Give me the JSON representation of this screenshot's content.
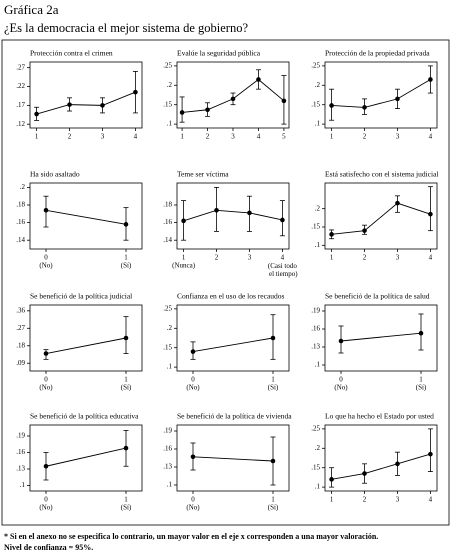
{
  "header": {
    "title": "Gráfica 2a",
    "subtitle": "¿Es la democracia el mejor sistema de gobierno?"
  },
  "chart_data": [
    {
      "type": "line",
      "title": "Protección contra el crimen",
      "x": [
        1,
        2,
        3,
        4
      ],
      "xlim": [
        0.8,
        4.2
      ],
      "xticks": [
        1,
        2,
        3,
        4
      ],
      "series": [
        {
          "color": "#000000",
          "values": [
            0.147,
            0.172,
            0.17,
            0.205
          ],
          "lower": [
            0.13,
            0.155,
            0.15,
            0.15
          ],
          "upper": [
            0.165,
            0.19,
            0.19,
            0.26
          ]
        }
      ],
      "ylim": [
        0.11,
        0.285
      ],
      "yticks": [
        {
          "value": 0.12,
          "label": ".12"
        },
        {
          "value": 0.17,
          "label": ".17"
        },
        {
          "value": 0.22,
          "label": ".22"
        },
        {
          "value": 0.27,
          "label": ".27"
        }
      ]
    },
    {
      "type": "line",
      "title": "Evalúe la seguridad pública",
      "x": [
        1,
        2,
        3,
        4,
        5
      ],
      "xlim": [
        0.8,
        5.2
      ],
      "xticks": [
        1,
        2,
        3,
        4,
        5
      ],
      "series": [
        {
          "color": "#000000",
          "values": [
            0.13,
            0.137,
            0.165,
            0.215,
            0.16
          ],
          "lower": [
            0.105,
            0.12,
            0.15,
            0.19,
            0.1
          ],
          "upper": [
            0.17,
            0.155,
            0.18,
            0.24,
            0.225
          ]
        }
      ],
      "ylim": [
        0.09,
        0.26
      ],
      "yticks": [
        {
          "value": 0.1,
          "label": ".1"
        },
        {
          "value": 0.15,
          "label": ".15"
        },
        {
          "value": 0.2,
          "label": ".2"
        },
        {
          "value": 0.25,
          "label": ".25"
        }
      ]
    },
    {
      "type": "line",
      "title": "Protección de la propiedad privada",
      "x": [
        1,
        2,
        3,
        4
      ],
      "xlim": [
        0.8,
        4.2
      ],
      "xticks": [
        1,
        2,
        3,
        4
      ],
      "series": [
        {
          "color": "#000000",
          "values": [
            0.148,
            0.143,
            0.165,
            0.215
          ],
          "lower": [
            0.11,
            0.125,
            0.14,
            0.18
          ],
          "upper": [
            0.19,
            0.165,
            0.19,
            0.25
          ]
        }
      ],
      "ylim": [
        0.09,
        0.26
      ],
      "yticks": [
        {
          "value": 0.1,
          "label": ".1"
        },
        {
          "value": 0.15,
          "label": ".15"
        },
        {
          "value": 0.2,
          "label": ".2"
        },
        {
          "value": 0.25,
          "label": ".25"
        }
      ]
    },
    {
      "type": "line",
      "title": "Ha sido asaltado",
      "x": [
        0,
        1
      ],
      "xlim": [
        -0.2,
        1.2
      ],
      "xticks": [
        0,
        1
      ],
      "xtick_notes": [
        "(No)",
        "(Sí)"
      ],
      "series": [
        {
          "color": "#000000",
          "values": [
            0.174,
            0.158
          ],
          "lower": [
            0.155,
            0.14
          ],
          "upper": [
            0.19,
            0.177
          ]
        }
      ],
      "ylim": [
        0.13,
        0.205
      ],
      "yticks": [
        {
          "value": 0.14,
          "label": ".14"
        },
        {
          "value": 0.16,
          "label": ".16"
        },
        {
          "value": 0.18,
          "label": ".18"
        },
        {
          "value": 0.2,
          "label": ".2"
        }
      ]
    },
    {
      "type": "line",
      "title": "Teme ser víctima",
      "x": [
        1,
        2,
        3,
        4
      ],
      "xlim": [
        0.8,
        4.2
      ],
      "xticks": [
        1,
        2,
        3,
        4
      ],
      "xtick_notes": [
        "(Nunca)",
        null,
        null,
        "(Casi todo el tiempo)"
      ],
      "series": [
        {
          "color": "#000000",
          "values": [
            0.162,
            0.174,
            0.171,
            0.163
          ],
          "lower": [
            0.14,
            0.15,
            0.15,
            0.145
          ],
          "upper": [
            0.185,
            0.2,
            0.19,
            0.185
          ]
        }
      ],
      "ylim": [
        0.13,
        0.205
      ],
      "yticks": [
        {
          "value": 0.14,
          "label": ".14"
        },
        {
          "value": 0.16,
          "label": ".16"
        },
        {
          "value": 0.18,
          "label": ".18"
        }
      ]
    },
    {
      "type": "line",
      "title": "Está satisfecho con el sistema judicial",
      "x": [
        1,
        2,
        3,
        4
      ],
      "xlim": [
        0.8,
        4.2
      ],
      "xticks": [
        1,
        2,
        3,
        4
      ],
      "series": [
        {
          "color": "#000000",
          "values": [
            0.13,
            0.14,
            0.215,
            0.185
          ],
          "lower": [
            0.118,
            0.13,
            0.19,
            0.14
          ],
          "upper": [
            0.142,
            0.155,
            0.235,
            0.26
          ]
        }
      ],
      "ylim": [
        0.09,
        0.27
      ],
      "yticks": [
        {
          "value": 0.1,
          "label": ".1"
        },
        {
          "value": 0.15,
          "label": ".15"
        },
        {
          "value": 0.2,
          "label": ".2"
        }
      ]
    },
    {
      "type": "line",
      "title": "Se benefició de la política judicial",
      "x": [
        0,
        1
      ],
      "xlim": [
        -0.2,
        1.2
      ],
      "xticks": [
        0,
        1
      ],
      "xtick_notes": [
        "(No)",
        "(Sí)"
      ],
      "series": [
        {
          "color": "#000000",
          "values": [
            0.14,
            0.22
          ],
          "lower": [
            0.11,
            0.14
          ],
          "upper": [
            0.16,
            0.33
          ]
        }
      ],
      "ylim": [
        0.05,
        0.39
      ],
      "yticks": [
        {
          "value": 0.09,
          "label": ".09"
        },
        {
          "value": 0.18,
          "label": ".18"
        },
        {
          "value": 0.27,
          "label": ".27"
        },
        {
          "value": 0.36,
          "label": ".36"
        }
      ]
    },
    {
      "type": "line",
      "title": "Confianza en el uso de los recaudos",
      "x": [
        0,
        1
      ],
      "xlim": [
        -0.2,
        1.2
      ],
      "xticks": [
        0,
        1
      ],
      "xtick_notes": [
        "(No)",
        "(Sí)"
      ],
      "series": [
        {
          "color": "#000000",
          "values": [
            0.14,
            0.175
          ],
          "lower": [
            0.12,
            0.12
          ],
          "upper": [
            0.165,
            0.235
          ]
        }
      ],
      "ylim": [
        0.09,
        0.26
      ],
      "yticks": [
        {
          "value": 0.1,
          "label": ".1"
        },
        {
          "value": 0.15,
          "label": ".15"
        },
        {
          "value": 0.2,
          "label": ".2"
        },
        {
          "value": 0.25,
          "label": ".25"
        }
      ]
    },
    {
      "type": "line",
      "title": "Se benefició de la política de salud",
      "x": [
        0,
        1
      ],
      "xlim": [
        -0.2,
        1.2
      ],
      "xticks": [
        0,
        1
      ],
      "xtick_notes": [
        "(No)",
        "(Sí)"
      ],
      "series": [
        {
          "color": "#000000",
          "values": [
            0.14,
            0.153
          ],
          "lower": [
            0.12,
            0.125
          ],
          "upper": [
            0.165,
            0.185
          ]
        }
      ],
      "ylim": [
        0.09,
        0.2
      ],
      "yticks": [
        {
          "value": 0.1,
          "label": ".1"
        },
        {
          "value": 0.13,
          "label": ".13"
        },
        {
          "value": 0.16,
          "label": ".16"
        },
        {
          "value": 0.19,
          "label": ".19"
        }
      ]
    },
    {
      "type": "line",
      "title": "Se benefició de la política educativa",
      "x": [
        0,
        1
      ],
      "xlim": [
        -0.2,
        1.2
      ],
      "xticks": [
        0,
        1
      ],
      "xtick_notes": [
        "(No)",
        "(Sí)"
      ],
      "series": [
        {
          "color": "#000000",
          "values": [
            0.135,
            0.168
          ],
          "lower": [
            0.11,
            0.135
          ],
          "upper": [
            0.16,
            0.2
          ]
        }
      ],
      "ylim": [
        0.09,
        0.21
      ],
      "yticks": [
        {
          "value": 0.1,
          "label": ".1"
        },
        {
          "value": 0.13,
          "label": ".13"
        },
        {
          "value": 0.16,
          "label": ".16"
        },
        {
          "value": 0.19,
          "label": ".19"
        }
      ]
    },
    {
      "type": "line",
      "title": "Se benefició de la política de vivienda",
      "x": [
        0,
        1
      ],
      "xlim": [
        -0.2,
        1.2
      ],
      "xticks": [
        0,
        1
      ],
      "xtick_notes": [
        "(No)",
        "(Sí)"
      ],
      "series": [
        {
          "color": "#000000",
          "values": [
            0.147,
            0.14
          ],
          "lower": [
            0.125,
            0.1
          ],
          "upper": [
            0.17,
            0.18
          ]
        }
      ],
      "ylim": [
        0.09,
        0.2
      ],
      "yticks": [
        {
          "value": 0.1,
          "label": ".1"
        },
        {
          "value": 0.13,
          "label": ".13"
        },
        {
          "value": 0.16,
          "label": ".16"
        },
        {
          "value": 0.19,
          "label": ".19"
        }
      ]
    },
    {
      "type": "line",
      "title": "Lo que ha hecho el Estado por usted",
      "x": [
        1,
        2,
        3,
        4
      ],
      "xlim": [
        0.8,
        4.2
      ],
      "xticks": [
        1,
        2,
        3,
        4
      ],
      "series": [
        {
          "color": "#000000",
          "values": [
            0.12,
            0.135,
            0.16,
            0.185
          ],
          "lower": [
            0.1,
            0.11,
            0.13,
            0.14
          ],
          "upper": [
            0.15,
            0.16,
            0.19,
            0.25
          ]
        }
      ],
      "ylim": [
        0.09,
        0.26
      ],
      "yticks": [
        {
          "value": 0.1,
          "label": ".1"
        },
        {
          "value": 0.15,
          "label": ".15"
        },
        {
          "value": 0.2,
          "label": ".2"
        },
        {
          "value": 0.25,
          "label": ".25"
        }
      ]
    }
  ],
  "footnote": [
    "* Si en el anexo no se especifica lo contrario, un mayor valor en el eje x corresponden a una mayor valoración.",
    "Nivel de confianza = 95%."
  ]
}
